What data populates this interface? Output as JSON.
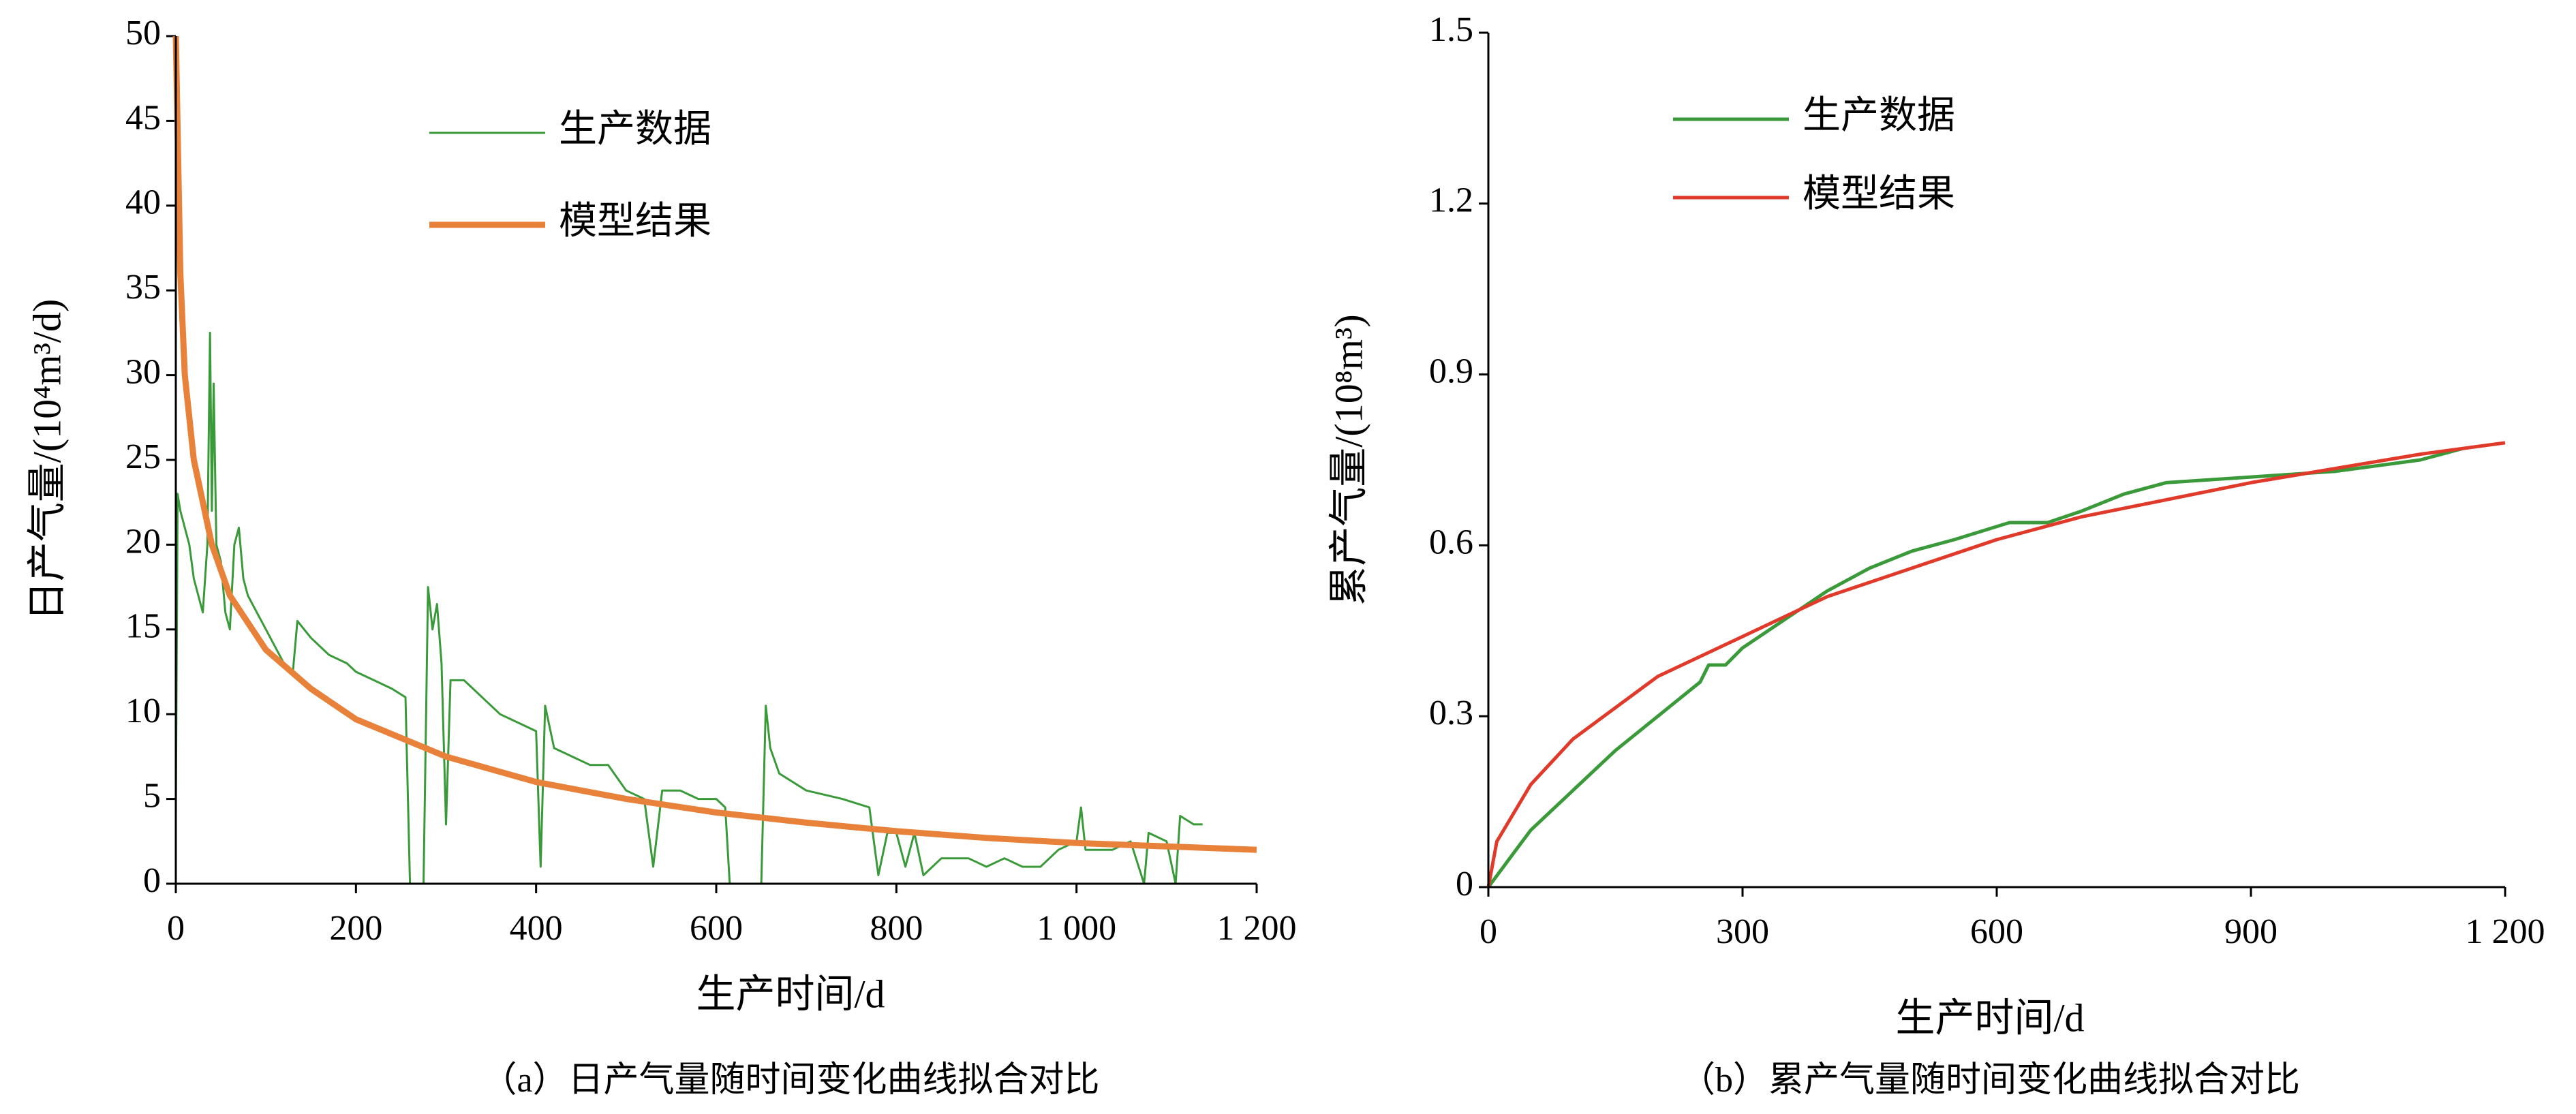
{
  "chart_data": [
    {
      "type": "line",
      "caption": "（a）日产气量随时间变化曲线拟合对比",
      "xlabel": "生产时间/d",
      "ylabel": "日产气量/(10⁴m³/d)",
      "xlim": [
        0,
        1200
      ],
      "ylim": [
        0,
        50
      ],
      "xticks": [
        0,
        200,
        400,
        600,
        800,
        {
          "value": 1000,
          "label": "1 000"
        },
        {
          "value": 1200,
          "label": "1 200"
        }
      ],
      "yticks": [
        0,
        5,
        10,
        15,
        20,
        25,
        30,
        35,
        40,
        45,
        50
      ],
      "legend": "top",
      "series": [
        {
          "name": "生产数据",
          "color": "#3a9a3a",
          "width": 3,
          "x": [
            0,
            2,
            5,
            10,
            15,
            20,
            25,
            30,
            35,
            38,
            40,
            42,
            45,
            50,
            55,
            60,
            65,
            70,
            75,
            80,
            90,
            100,
            110,
            120,
            130,
            135,
            150,
            170,
            190,
            200,
            220,
            240,
            255,
            260,
            275,
            280,
            285,
            290,
            295,
            300,
            305,
            320,
            340,
            360,
            380,
            400,
            405,
            410,
            420,
            440,
            460,
            480,
            500,
            520,
            530,
            540,
            560,
            580,
            600,
            610,
            615,
            650,
            655,
            660,
            670,
            700,
            740,
            770,
            780,
            790,
            800,
            810,
            820,
            830,
            850,
            880,
            900,
            920,
            940,
            960,
            980,
            1000,
            1005,
            1010,
            1040,
            1060,
            1075,
            1080,
            1100,
            1110,
            1115,
            1130,
            1140
          ],
          "values": [
            4,
            23,
            22,
            21,
            20,
            18,
            17,
            16,
            20,
            32.5,
            22,
            29.5,
            20,
            19,
            16,
            15,
            20,
            21,
            18,
            17,
            16,
            15,
            14,
            13,
            12.5,
            15.5,
            14.5,
            13.5,
            13,
            12.5,
            12,
            11.5,
            11,
            0,
            0,
            17.5,
            15,
            16.5,
            13,
            3.5,
            12,
            12,
            11,
            10,
            9.5,
            9,
            1,
            10.5,
            8,
            7.5,
            7,
            7,
            5.5,
            5,
            1,
            5.5,
            5.5,
            5,
            5,
            4.5,
            0,
            0,
            10.5,
            8,
            6.5,
            5.5,
            5,
            4.5,
            0.5,
            3,
            3,
            1,
            3,
            0.5,
            1.5,
            1.5,
            1,
            1.5,
            1,
            1,
            2,
            2.5,
            4.5,
            2,
            2,
            2.5,
            0,
            3,
            2.5,
            0,
            4,
            3.5,
            3.5
          ]
        },
        {
          "name": "模型结果",
          "color": "#e8813a",
          "width": 9,
          "x": [
            0,
            5,
            10,
            20,
            40,
            60,
            100,
            150,
            200,
            300,
            400,
            500,
            600,
            700,
            800,
            900,
            1000,
            1100,
            1200
          ],
          "values": [
            50,
            36,
            30,
            25,
            20,
            17,
            13.8,
            11.5,
            9.7,
            7.5,
            6,
            5,
            4.2,
            3.6,
            3.1,
            2.7,
            2.4,
            2.2,
            2
          ]
        }
      ]
    },
    {
      "type": "line",
      "caption": "（b）累产气量随时间变化曲线拟合对比",
      "xlabel": "生产时间/d",
      "ylabel": "累产气量/(10⁸m³)",
      "xlim": [
        0,
        1200
      ],
      "ylim": [
        0,
        1.5
      ],
      "xticks": [
        0,
        300,
        600,
        900,
        {
          "value": 1200,
          "label": "1 200"
        }
      ],
      "yticks": [
        0,
        0.3,
        0.6,
        0.9,
        1.2,
        1.5
      ],
      "legend": "top",
      "series": [
        {
          "name": "生产数据",
          "color": "#3a9a3a",
          "width": 5,
          "x": [
            0,
            30,
            50,
            100,
            150,
            200,
            250,
            260,
            280,
            300,
            350,
            400,
            450,
            500,
            550,
            615,
            660,
            700,
            750,
            800,
            900,
            1000,
            1100,
            1150
          ],
          "values": [
            0,
            0.06,
            0.1,
            0.17,
            0.24,
            0.3,
            0.36,
            0.39,
            0.39,
            0.42,
            0.47,
            0.52,
            0.56,
            0.59,
            0.61,
            0.64,
            0.64,
            0.66,
            0.69,
            0.71,
            0.72,
            0.73,
            0.75,
            0.77
          ]
        },
        {
          "name": "模型结果",
          "color": "#e03a2a",
          "width": 5,
          "x": [
            0,
            10,
            50,
            100,
            200,
            300,
            400,
            500,
            600,
            700,
            800,
            900,
            1000,
            1100,
            1200
          ],
          "values": [
            0,
            0.08,
            0.18,
            0.26,
            0.37,
            0.44,
            0.51,
            0.56,
            0.61,
            0.65,
            0.68,
            0.71,
            0.735,
            0.76,
            0.78
          ]
        }
      ]
    }
  ]
}
